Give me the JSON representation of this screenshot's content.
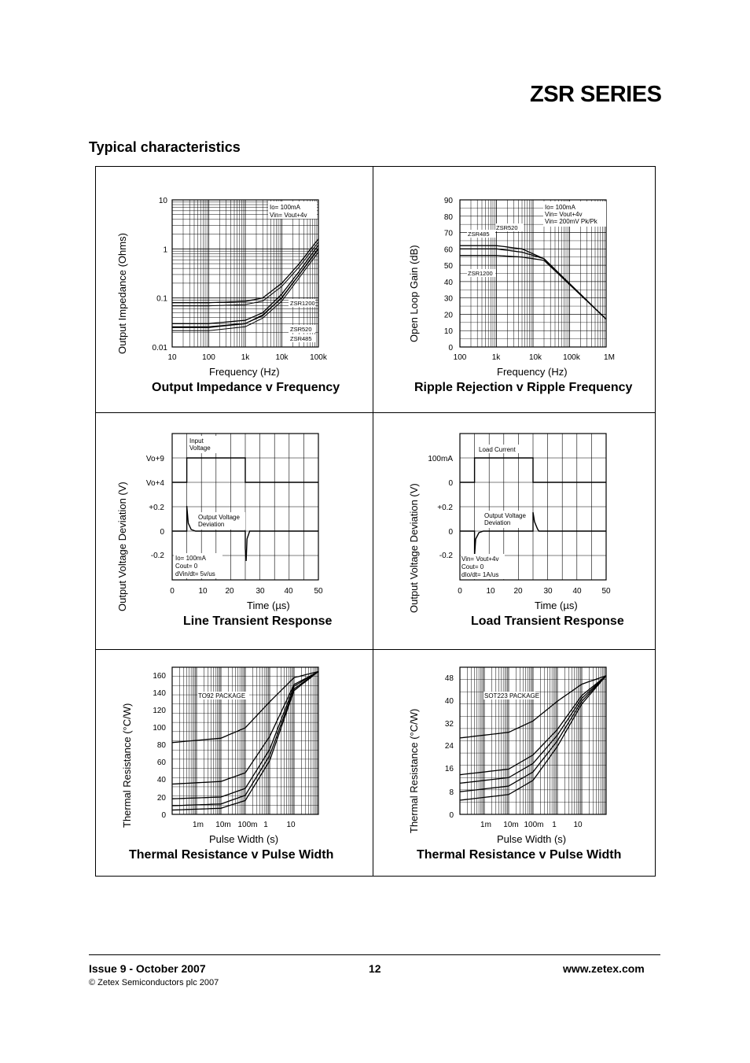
{
  "header": {
    "series_title": "ZSR SERIES",
    "section_title": "Typical characteristics"
  },
  "footer": {
    "issue": "Issue 9 - October 2007",
    "copyright": "© Zetex Semiconductors plc 2007",
    "page": "12",
    "website": "www.zetex.com"
  },
  "chart_data": [
    {
      "type": "line",
      "title": "Output Impedance v Frequency",
      "xlabel": "Frequency (Hz)",
      "ylabel": "Output Impedance (Ohms)",
      "x_scale": "log",
      "y_scale": "log",
      "xlim": [
        10,
        100000
      ],
      "ylim": [
        0.01,
        10
      ],
      "x_ticks": [
        "10",
        "100",
        "1k",
        "10k",
        "100k"
      ],
      "y_ticks": [
        "10",
        "1",
        "0.1",
        "0.01"
      ],
      "annotations": [
        "Io= 100mA",
        "Vin= Vout+4v",
        "ZSR1200",
        "ZSR520",
        "ZSR485"
      ],
      "series": [
        {
          "name": "ZSR1200",
          "x": [
            10,
            100,
            1000,
            3000,
            10000,
            30000,
            100000
          ],
          "y": [
            0.08,
            0.08,
            0.085,
            0.1,
            0.2,
            0.5,
            1.6
          ]
        },
        {
          "name": "ZSR520",
          "x": [
            10,
            100,
            1000,
            3000,
            10000,
            30000,
            100000
          ],
          "y": [
            0.03,
            0.03,
            0.035,
            0.05,
            0.12,
            0.35,
            1.2
          ]
        },
        {
          "name": "ZSR485",
          "x": [
            10,
            100,
            1000,
            3000,
            10000,
            30000,
            100000
          ],
          "y": [
            0.025,
            0.025,
            0.03,
            0.045,
            0.1,
            0.3,
            1.0
          ]
        }
      ]
    },
    {
      "type": "line",
      "title": "Ripple Rejection v Ripple Frequency",
      "xlabel": "Frequency (Hz)",
      "ylabel": "Open Loop Gain (dB)",
      "x_scale": "log",
      "xlim": [
        100,
        1000000
      ],
      "ylim": [
        0,
        90
      ],
      "x_ticks": [
        "100",
        "1k",
        "10k",
        "100k",
        "1M"
      ],
      "y_ticks": [
        "90",
        "80",
        "70",
        "60",
        "50",
        "40",
        "30",
        "20",
        "10",
        "0"
      ],
      "annotations": [
        "Io= 100mA",
        "Vin= Vout+4v",
        "Vin= 200mV Pk/Pk",
        "ZSR520",
        "ZSR485",
        "ZSR1200"
      ],
      "series": [
        {
          "name": "ZSR485",
          "x": [
            100,
            1000,
            5000,
            20000,
            1000000
          ],
          "y": [
            62,
            62,
            60,
            54,
            17
          ]
        },
        {
          "name": "ZSR520",
          "x": [
            100,
            1000,
            5000,
            20000,
            1000000
          ],
          "y": [
            60,
            60,
            58,
            54,
            17
          ]
        },
        {
          "name": "ZSR1200",
          "x": [
            100,
            1000,
            5000,
            20000,
            1000000
          ],
          "y": [
            56,
            56,
            55,
            53,
            17
          ]
        }
      ]
    },
    {
      "type": "line",
      "title": "Line Transient Response",
      "xlabel": "Time (µs)",
      "ylabel": "Output Voltage Deviation (V)",
      "xlim": [
        0,
        50
      ],
      "x_ticks": [
        "0",
        "10",
        "20",
        "30",
        "40",
        "50"
      ],
      "y_ticks": [
        "Vo+9",
        "Vo+4",
        "+0.2",
        "0",
        "-0.2"
      ],
      "annotations": [
        "Input Voltage",
        "Output Voltage Deviation",
        "Io= 100mA",
        "Cout= 0",
        "dVin/dt= 5v/us"
      ]
    },
    {
      "type": "line",
      "title": "Load Transient Response",
      "xlabel": "Time (µs)",
      "ylabel": "Output Voltage Deviation (V)",
      "xlim": [
        0,
        50
      ],
      "x_ticks": [
        "0",
        "10",
        "20",
        "30",
        "40",
        "50"
      ],
      "y_ticks": [
        "100mA",
        "0",
        "+0.2",
        "0",
        "-0.2"
      ],
      "annotations": [
        "Load Current",
        "Output Voltage Deviation",
        "Vin= Vout+4v",
        "Cout= 0",
        "dIo/dt= 1A/us"
      ]
    },
    {
      "type": "line",
      "title": "Thermal Resistance v Pulse Width",
      "xlabel": "Pulse Width (s)",
      "ylabel": "Thermal Resistance (°C/W)",
      "x_scale": "log",
      "ylim": [
        0,
        170
      ],
      "x_ticks": [
        "1m",
        "10m",
        "100m",
        "1",
        "10"
      ],
      "y_ticks": [
        "160",
        "140",
        "120",
        "100",
        "80",
        "60",
        "40",
        "20",
        "0"
      ],
      "annotations": [
        "TO92 PACKAGE"
      ],
      "series": [
        {
          "x": [
            0.0001,
            0.01,
            0.1,
            1,
            10,
            100
          ],
          "y": [
            83,
            88,
            100,
            130,
            158,
            165
          ]
        },
        {
          "x": [
            0.0001,
            0.01,
            0.1,
            1,
            10,
            100
          ],
          "y": [
            35,
            38,
            48,
            90,
            150,
            165
          ]
        },
        {
          "x": [
            0.0001,
            0.01,
            0.1,
            1,
            10,
            100
          ],
          "y": [
            18,
            20,
            30,
            75,
            148,
            165
          ]
        },
        {
          "x": [
            0.0001,
            0.01,
            0.1,
            1,
            10,
            100
          ],
          "y": [
            10,
            12,
            22,
            68,
            145,
            165
          ]
        },
        {
          "x": [
            0.0001,
            0.01,
            0.1,
            1,
            10,
            100
          ],
          "y": [
            5,
            7,
            16,
            62,
            143,
            165
          ]
        }
      ]
    },
    {
      "type": "line",
      "title": "Thermal Resistance v Pulse Width",
      "xlabel": "Pulse Width (s)",
      "ylabel": "Thermal Resistance (°C/W)",
      "x_scale": "log",
      "ylim": [
        0,
        52
      ],
      "x_ticks": [
        "1m",
        "10m",
        "100m",
        "1",
        "10"
      ],
      "y_ticks": [
        "48",
        "40",
        "32",
        "24",
        "16",
        "8",
        "0"
      ],
      "annotations": [
        "SOT223 PACKAGE"
      ],
      "series": [
        {
          "x": [
            0.0001,
            0.01,
            0.1,
            1,
            10,
            100
          ],
          "y": [
            27,
            29,
            33,
            40,
            46,
            49
          ]
        },
        {
          "x": [
            0.0001,
            0.01,
            0.1,
            1,
            10,
            100
          ],
          "y": [
            14,
            16,
            21,
            30,
            42,
            49
          ]
        },
        {
          "x": [
            0.0001,
            0.01,
            0.1,
            1,
            10,
            100
          ],
          "y": [
            11,
            13,
            18,
            28,
            41,
            49
          ]
        },
        {
          "x": [
            0.0001,
            0.01,
            0.1,
            1,
            10,
            100
          ],
          "y": [
            8,
            10,
            15,
            26,
            40,
            49
          ]
        },
        {
          "x": [
            0.0001,
            0.01,
            0.1,
            1,
            10,
            100
          ],
          "y": [
            5,
            7,
            12,
            24,
            39,
            49
          ]
        }
      ]
    }
  ]
}
